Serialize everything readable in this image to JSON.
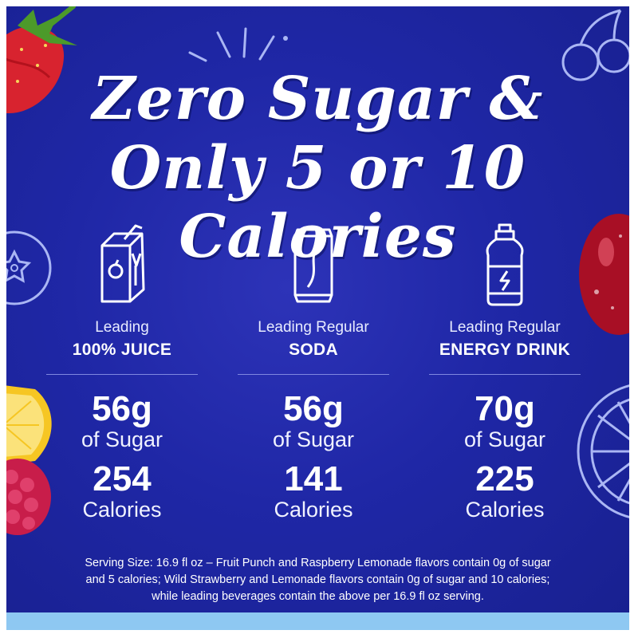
{
  "headline": {
    "line1": "Zero Sugar &",
    "line2": "Only 5 or 10 Calories"
  },
  "columns": [
    {
      "icon": "juice-box-icon",
      "lead": "Leading",
      "product": "100% JUICE",
      "sugar_value": "56g",
      "sugar_unit": "of Sugar",
      "calories_value": "254",
      "calories_unit": "Calories"
    },
    {
      "icon": "soda-can-icon",
      "lead": "Leading Regular",
      "product": "SODA",
      "sugar_value": "56g",
      "sugar_unit": "of Sugar",
      "calories_value": "141",
      "calories_unit": "Calories"
    },
    {
      "icon": "energy-drink-bottle-icon",
      "lead": "Leading Regular",
      "product": "ENERGY DRINK",
      "sugar_value": "70g",
      "sugar_unit": "of Sugar",
      "calories_value": "225",
      "calories_unit": "Calories"
    }
  ],
  "footnote": {
    "line1": "Serving Size: 16.9 fl oz – Fruit Punch and Raspberry Lemonade flavors contain 0g of sugar",
    "line2": "and 5 calories; Wild Strawberry and Lemonade flavors contain 0g of sugar and 10 calories;",
    "line3": "while leading beverages contain the above per 16.9 fl oz serving."
  },
  "colors": {
    "background": "#1f27a6",
    "text": "#ffffff",
    "bottom_bar": "#8ec8f2"
  }
}
